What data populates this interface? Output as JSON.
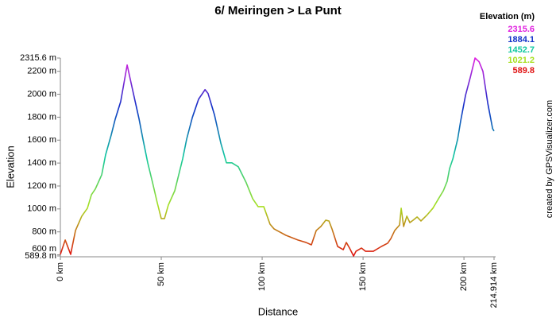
{
  "chart_data": {
    "type": "line",
    "title": "6/ Meiringen > La Punt",
    "x_label": "Distance",
    "y_label": "Elevation",
    "credit": "created by GPSVisualizer.com",
    "legend_title": "Elevation (m)",
    "color_scale": {
      "values": [
        2315.6,
        1884.1,
        1452.7,
        1021.2,
        589.8
      ],
      "colors": [
        "#e020e0",
        "#1030c8",
        "#10c8a0",
        "#a8e020",
        "#e01010"
      ]
    },
    "xlim": [
      0,
      214.914
    ],
    "ylim": [
      589.8,
      2315.6
    ],
    "xticks": [
      {
        "value": 0,
        "label": "0 km"
      },
      {
        "value": 50,
        "label": "50 km"
      },
      {
        "value": 100,
        "label": "100 km"
      },
      {
        "value": 150,
        "label": "150 km"
      },
      {
        "value": 200,
        "label": "200 km"
      },
      {
        "value": 214.914,
        "label": "214.914 km"
      }
    ],
    "yticks": [
      {
        "value": 589.8,
        "label": "589.8 m"
      },
      {
        "value": 600,
        "label": "600 m"
      },
      {
        "value": 800,
        "label": "800 m"
      },
      {
        "value": 1000,
        "label": "1000 m"
      },
      {
        "value": 1200,
        "label": "1200 m"
      },
      {
        "value": 1400,
        "label": "1400 m"
      },
      {
        "value": 1600,
        "label": "1600 m"
      },
      {
        "value": 1800,
        "label": "1800 m"
      },
      {
        "value": 2000,
        "label": "2000 m"
      },
      {
        "value": 2200,
        "label": "2200 m"
      },
      {
        "value": 2315.6,
        "label": "2315.6 m"
      }
    ],
    "x": [
      0,
      2.4,
      5.1,
      7.5,
      10.6,
      13.4,
      15.4,
      17.3,
      20.5,
      22.4,
      25.2,
      27.2,
      29.9,
      33.1,
      36.2,
      39.0,
      40.9,
      43.3,
      45.7,
      48.0,
      50.0,
      51.6,
      53.5,
      56.7,
      60.6,
      62.6,
      65.4,
      68.5,
      71.7,
      73.2,
      76.4,
      79.5,
      82.3,
      85.0,
      88.2,
      92.1,
      95.3,
      98.0,
      100.8,
      103.9,
      105.9,
      111.8,
      117.7,
      121.7,
      124.4,
      126.8,
      129.1,
      131.5,
      133.1,
      134.6,
      137.4,
      140.2,
      141.7,
      143.3,
      145.3,
      146.5,
      149.2,
      151.2,
      155.1,
      159.1,
      162.2,
      163.8,
      165.7,
      168.1,
      168.9,
      170.1,
      171.7,
      173.2,
      174.8,
      176.8,
      178.7,
      181.9,
      184.6,
      187.4,
      189.8,
      191.7,
      192.9,
      194.5,
      196.9,
      198.4,
      200.8,
      203.1,
      205.5,
      207.5,
      209.4,
      211.8,
      214.2,
      214.914
    ],
    "series": [
      {
        "name": "Elevation",
        "values": [
          604,
          729,
          604,
          812,
          937,
          1006,
          1124,
          1173,
          1298,
          1471,
          1645,
          1784,
          1936,
          2255,
          2006,
          1784,
          1610,
          1402,
          1229,
          1055,
          916,
          916,
          1034,
          1159,
          1436,
          1610,
          1797,
          1957,
          2040,
          2006,
          1818,
          1575,
          1402,
          1402,
          1367,
          1229,
          1089,
          1020,
          1020,
          867,
          826,
          770,
          729,
          708,
          687,
          812,
          847,
          902,
          895,
          826,
          673,
          645,
          708,
          659,
          589.8,
          631,
          659,
          631,
          631,
          673,
          701,
          742,
          812,
          860,
          1006,
          847,
          937,
          881,
          902,
          930,
          895,
          951,
          1006,
          1089,
          1159,
          1242,
          1353,
          1436,
          1610,
          1770,
          1992,
          2144,
          2315.6,
          2283,
          2200,
          1922,
          1700,
          1679
        ]
      }
    ]
  }
}
